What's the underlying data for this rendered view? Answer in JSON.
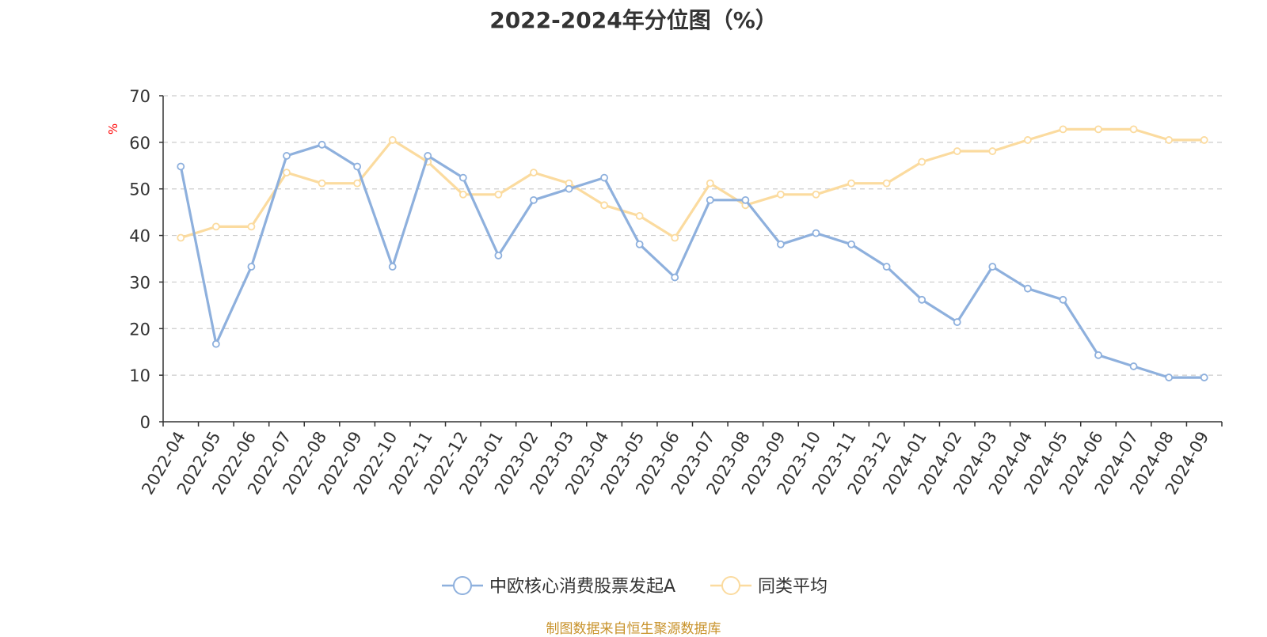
{
  "chart_data": {
    "type": "line",
    "title": "2022-2024年分位图（%）",
    "ylabel": "%",
    "ylim": [
      0,
      70
    ],
    "yticks": [
      0,
      10,
      20,
      30,
      40,
      50,
      60,
      70
    ],
    "grid": true,
    "legend_position": "bottom-center",
    "categories": [
      "2022-04",
      "2022-05",
      "2022-06",
      "2022-07",
      "2022-08",
      "2022-09",
      "2022-10",
      "2022-11",
      "2022-12",
      "2023-01",
      "2023-02",
      "2023-03",
      "2023-04",
      "2023-05",
      "2023-06",
      "2023-07",
      "2023-08",
      "2023-09",
      "2023-10",
      "2023-11",
      "2023-12",
      "2024-01",
      "2024-02",
      "2024-03",
      "2024-04",
      "2024-05",
      "2024-06",
      "2024-07",
      "2024-08",
      "2024-09"
    ],
    "series": [
      {
        "name": "中欧核心消费股票发起A",
        "color": "#8eb0dd",
        "values": [
          54.8,
          16.7,
          33.3,
          57.1,
          59.5,
          54.8,
          33.3,
          57.1,
          52.4,
          35.7,
          47.6,
          50.0,
          52.4,
          38.1,
          31.0,
          47.6,
          47.6,
          38.1,
          40.5,
          38.1,
          33.3,
          26.2,
          21.4,
          33.3,
          28.6,
          26.2,
          14.3,
          11.9,
          9.5,
          9.5
        ]
      },
      {
        "name": "同类平均",
        "color": "#fbdb9f",
        "values": [
          39.5,
          41.9,
          41.9,
          53.5,
          51.2,
          51.2,
          60.5,
          55.8,
          48.8,
          48.8,
          53.5,
          51.2,
          46.5,
          44.2,
          39.5,
          51.2,
          46.5,
          48.8,
          48.8,
          51.2,
          51.2,
          55.8,
          58.1,
          58.1,
          60.5,
          62.8,
          62.8,
          62.8,
          60.5,
          60.5
        ]
      }
    ]
  },
  "footer": {
    "source": "制图数据来自恒生聚源数据库"
  }
}
